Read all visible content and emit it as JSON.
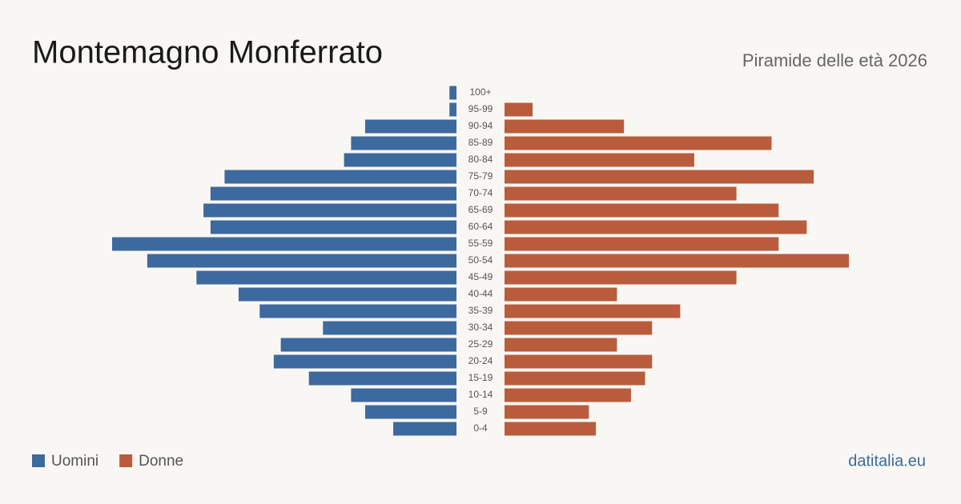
{
  "chart_data": {
    "type": "pyramid",
    "title": "Montemagno Monferrato",
    "subtitle": "Piramide delle età 2026",
    "source": "datitalia.eu",
    "categories": [
      "100+",
      "95-99",
      "90-94",
      "85-89",
      "80-84",
      "75-79",
      "70-74",
      "65-69",
      "60-64",
      "55-59",
      "50-54",
      "45-49",
      "40-44",
      "35-39",
      "30-34",
      "25-29",
      "20-24",
      "15-19",
      "10-14",
      "5-9",
      "0-4"
    ],
    "series": [
      {
        "name": "Uomini",
        "color": "#3d6a9e",
        "values": [
          1,
          1,
          13,
          15,
          16,
          33,
          35,
          36,
          35,
          49,
          44,
          37,
          31,
          28,
          19,
          25,
          26,
          21,
          15,
          13,
          9
        ]
      },
      {
        "name": "Donne",
        "color": "#b95c3c",
        "values": [
          0,
          4,
          17,
          38,
          27,
          44,
          33,
          39,
          43,
          39,
          49,
          33,
          16,
          25,
          21,
          16,
          21,
          20,
          18,
          12,
          13
        ]
      }
    ]
  }
}
